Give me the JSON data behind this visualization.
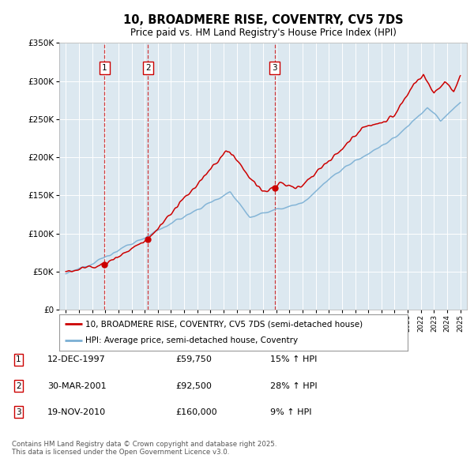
{
  "title": "10, BROADMERE RISE, COVENTRY, CV5 7DS",
  "subtitle": "Price paid vs. HM Land Registry's House Price Index (HPI)",
  "legend_line1": "10, BROADMERE RISE, COVENTRY, CV5 7DS (semi-detached house)",
  "legend_line2": "HPI: Average price, semi-detached house, Coventry",
  "footer": "Contains HM Land Registry data © Crown copyright and database right 2025.\nThis data is licensed under the Open Government Licence v3.0.",
  "transactions": [
    {
      "num": 1,
      "date": "12-DEC-1997",
      "price": 59750,
      "pct": "15%",
      "arrow": "↑",
      "ref": "HPI",
      "year": 1997.95
    },
    {
      "num": 2,
      "date": "30-MAR-2001",
      "price": 92500,
      "pct": "28%",
      "arrow": "↑",
      "ref": "HPI",
      "year": 2001.25
    },
    {
      "num": 3,
      "date": "19-NOV-2010",
      "price": 160000,
      "pct": "9%",
      "arrow": "↑",
      "ref": "HPI",
      "year": 2010.88
    }
  ],
  "red_color": "#cc0000",
  "blue_color": "#7aafd4",
  "plot_bg": "#dce8f0",
  "grid_color": "#ffffff",
  "ylim": [
    0,
    350000
  ],
  "xlim_start": 1994.5,
  "xlim_end": 2025.5,
  "yticks": [
    0,
    50000,
    100000,
    150000,
    200000,
    250000,
    300000,
    350000
  ]
}
